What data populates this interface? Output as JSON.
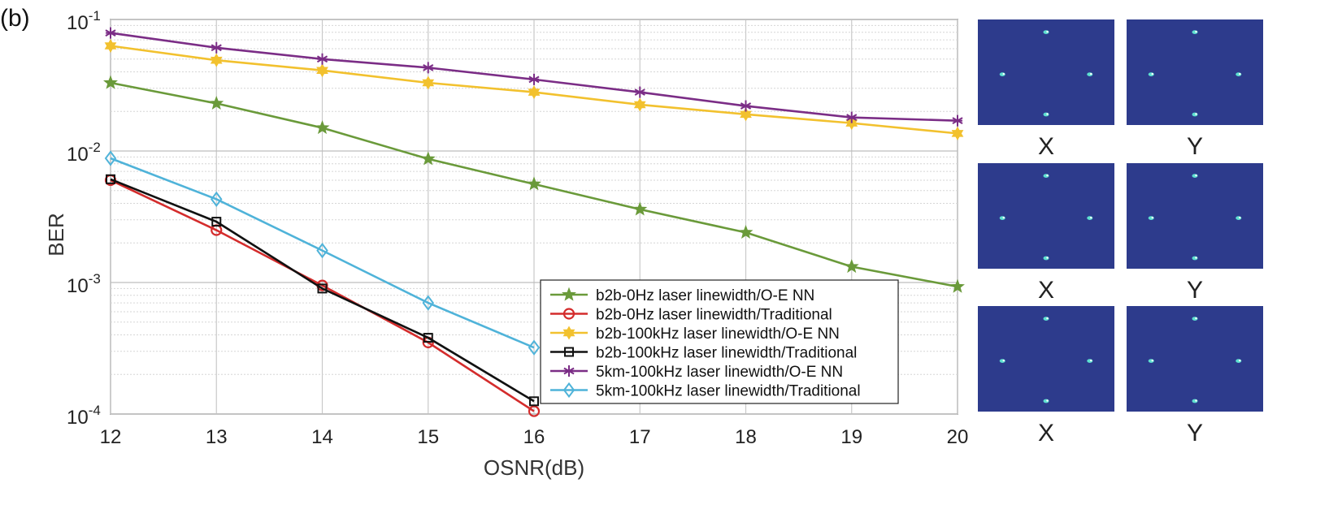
{
  "panel_label": "(b)",
  "chart_data": {
    "type": "line",
    "title": "",
    "xlabel": "OSNR(dB)",
    "ylabel": "BER",
    "yscale": "log",
    "xlim": [
      12,
      20
    ],
    "ylim": [
      0.0001,
      0.1
    ],
    "grid": true,
    "x_ticks": [
      "12",
      "13",
      "14",
      "15",
      "16",
      "17",
      "18",
      "19",
      "20"
    ],
    "y_ticks": [
      {
        "base": "10",
        "exp": "-4",
        "value": 0.0001
      },
      {
        "base": "10",
        "exp": "-3",
        "value": 0.001
      },
      {
        "base": "10",
        "exp": "-2",
        "value": 0.01
      },
      {
        "base": "10",
        "exp": "-1",
        "value": 0.1
      }
    ],
    "legend_position": "lower-center",
    "series": [
      {
        "name": "b2b-0Hz laser linewidth/O-E NN",
        "color": "#6a9a3a",
        "marker": "star",
        "x": [
          12,
          13,
          14,
          15,
          16,
          17,
          18,
          19,
          20
        ],
        "y": [
          0.033,
          0.023,
          0.015,
          0.0087,
          0.0056,
          0.0036,
          0.0024,
          0.00132,
          0.00093
        ]
      },
      {
        "name": "b2b-0Hz laser linewidth/Traditional",
        "color": "#d42c2c",
        "marker": "circle",
        "x": [
          12,
          13,
          14,
          15,
          16
        ],
        "y": [
          0.006,
          0.0025,
          0.00095,
          0.00035,
          0.000105
        ]
      },
      {
        "name": "b2b-100kHz laser linewidth/O-E NN",
        "color": "#f2c12e",
        "marker": "hexagram",
        "x": [
          12,
          13,
          14,
          15,
          16,
          17,
          18,
          19,
          20
        ],
        "y": [
          0.063,
          0.049,
          0.041,
          0.033,
          0.028,
          0.0225,
          0.019,
          0.0163,
          0.0136
        ]
      },
      {
        "name": "b2b-100kHz laser linewidth/Traditional",
        "color": "#111111",
        "marker": "square",
        "x": [
          12,
          13,
          14,
          15,
          16
        ],
        "y": [
          0.0061,
          0.0029,
          0.0009,
          0.00038,
          0.000125
        ]
      },
      {
        "name": "5km-100kHz laser linewidth/O-E NN",
        "color": "#7b2d86",
        "marker": "asterisk",
        "x": [
          12,
          13,
          14,
          15,
          16,
          17,
          18,
          19,
          20
        ],
        "y": [
          0.079,
          0.061,
          0.05,
          0.043,
          0.035,
          0.028,
          0.022,
          0.018,
          0.017
        ]
      },
      {
        "name": "5km-100kHz laser linewidth/Traditional",
        "color": "#4fb3d9",
        "marker": "diamond",
        "x": [
          12,
          13,
          14,
          15,
          16
        ],
        "y": [
          0.0088,
          0.0043,
          0.00175,
          0.0007,
          0.00032
        ]
      }
    ]
  },
  "constellations": {
    "labels": [
      [
        "X",
        "Y"
      ],
      [
        "X",
        "Y"
      ],
      [
        "X",
        "Y"
      ]
    ],
    "background_color": "#2d3b8c",
    "point_color": "#5de0d0"
  }
}
